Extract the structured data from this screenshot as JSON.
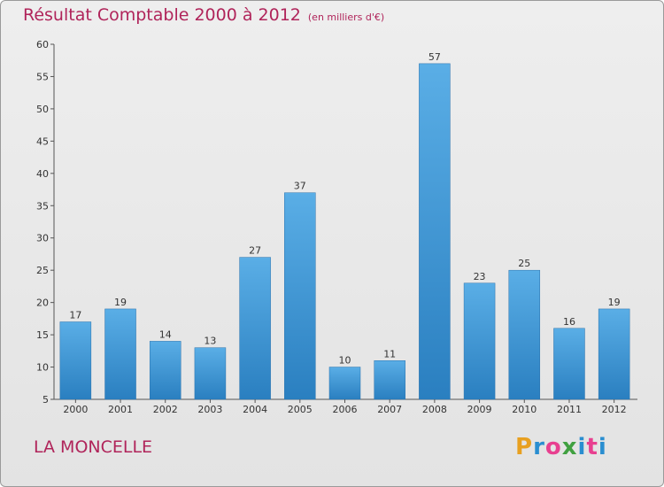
{
  "header": {
    "title": "Résultat Comptable 2000 à 2012",
    "subtitle": "(en milliers d'€)"
  },
  "footer": {
    "place": "LA MONCELLE",
    "logo_letters": [
      "P",
      "r",
      "o",
      "x",
      "i",
      "t",
      "i"
    ]
  },
  "colors": {
    "title": "#b0245a",
    "bar_top": "#5aaee6",
    "bar_bottom": "#2a7fc0",
    "logo": [
      "#e8a020",
      "#2a8ed0",
      "#e84090",
      "#40a040",
      "#2a8ed0",
      "#e84090",
      "#2a8ed0"
    ]
  },
  "chart_data": {
    "type": "bar",
    "categories": [
      "2000",
      "2001",
      "2002",
      "2003",
      "2004",
      "2005",
      "2006",
      "2007",
      "2008",
      "2009",
      "2010",
      "2011",
      "2012"
    ],
    "values": [
      17,
      19,
      14,
      13,
      27,
      37,
      10,
      11,
      57,
      23,
      25,
      16,
      19
    ],
    "title": "Résultat Comptable 2000 à 2012",
    "subtitle": "(en milliers d'€)",
    "ylim": [
      5,
      60
    ],
    "yticks": [
      5,
      10,
      15,
      20,
      25,
      30,
      35,
      40,
      45,
      50,
      55,
      60
    ],
    "grid": false,
    "data_labels": true
  }
}
